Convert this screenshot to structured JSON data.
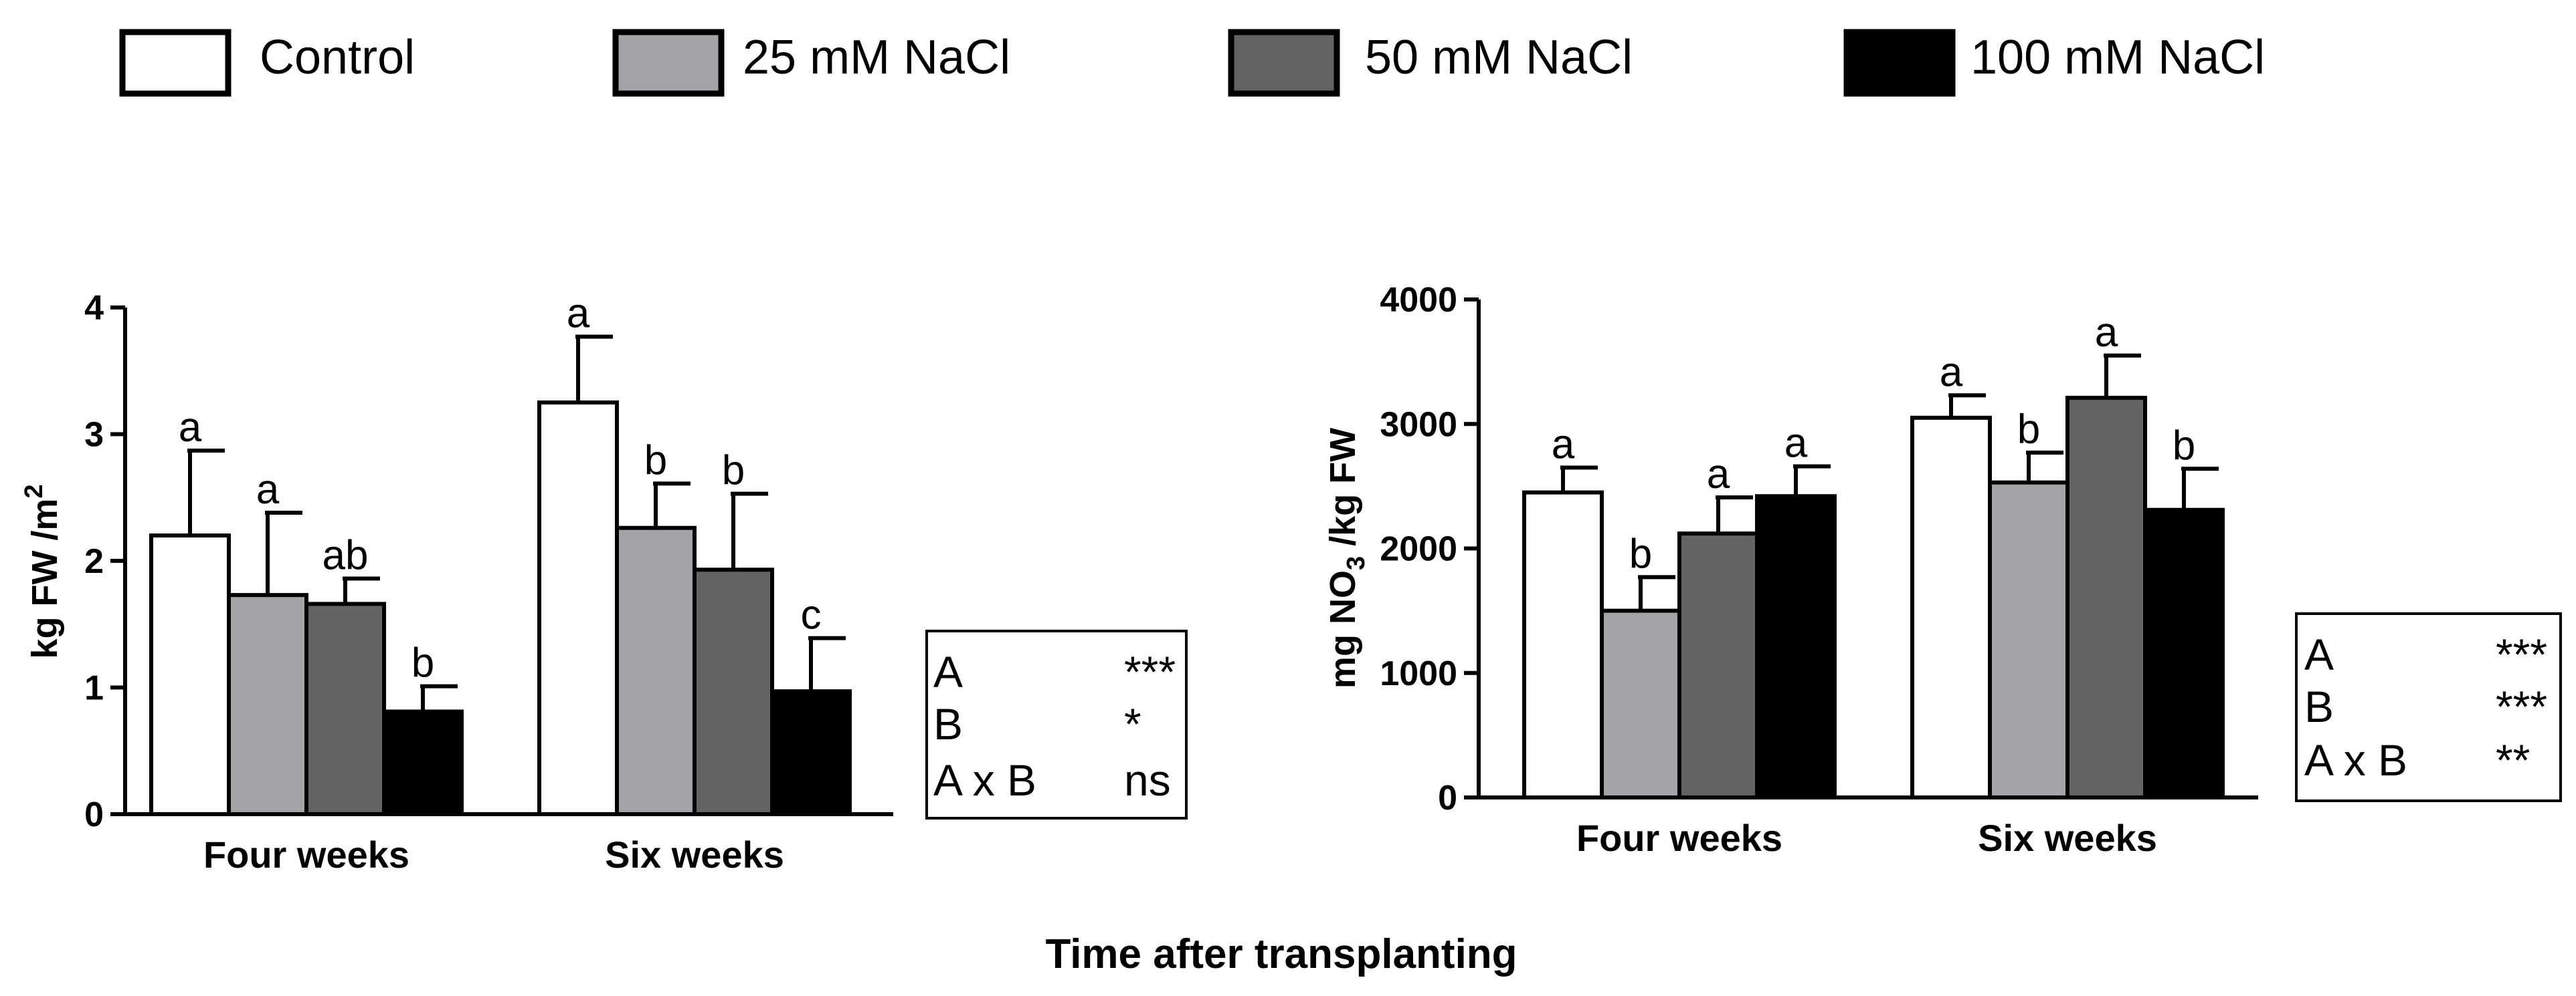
{
  "legend": [
    {
      "label": "Control",
      "color": "#ffffff"
    },
    {
      "label": "25 mM NaCl",
      "color": "#a3a3a8"
    },
    {
      "label": "50 mM NaCl",
      "color": "#636363"
    },
    {
      "label": "100 mM NaCl",
      "color": "#000000"
    }
  ],
  "x_axis_title": "Time after transplanting",
  "chart_data": [
    {
      "type": "bar",
      "title": "",
      "ylabel": "kg FW /m",
      "ylabel_sup": "2",
      "ylim": [
        0,
        4
      ],
      "yticks": [
        "0",
        "1",
        "2",
        "3",
        "4"
      ],
      "categories": [
        "Four weeks",
        "Six weeks"
      ],
      "series": [
        {
          "name": "Control",
          "values": [
            2.2,
            3.25
          ],
          "errors": [
            0.67,
            0.52
          ],
          "letters": [
            "a",
            "a"
          ]
        },
        {
          "name": "25 mM NaCl",
          "values": [
            1.73,
            2.26
          ],
          "errors": [
            0.65,
            0.35
          ],
          "letters": [
            "a",
            "b"
          ]
        },
        {
          "name": "50 mM NaCl",
          "values": [
            1.66,
            1.93
          ],
          "errors": [
            0.2,
            0.6
          ],
          "letters": [
            "ab",
            "b"
          ]
        },
        {
          "name": "100 mM NaCl",
          "values": [
            0.81,
            0.97
          ],
          "errors": [
            0.2,
            0.42
          ],
          "letters": [
            "b",
            "c"
          ]
        }
      ],
      "stats": [
        {
          "factor": "A",
          "sig": "***"
        },
        {
          "factor": "B",
          "sig": "*"
        },
        {
          "factor": "A x B",
          "sig": "ns"
        }
      ]
    },
    {
      "type": "bar",
      "title": "",
      "ylabel_parts": [
        "mg NO",
        "3",
        " /kg FW"
      ],
      "ylim": [
        0,
        4000
      ],
      "yticks": [
        "0",
        "1000",
        "2000",
        "3000",
        "4000"
      ],
      "categories": [
        "Four weeks",
        "Six weeks"
      ],
      "series": [
        {
          "name": "Control",
          "values": [
            2450,
            3050
          ],
          "errors": [
            200,
            180
          ],
          "letters": [
            "a",
            "a"
          ]
        },
        {
          "name": "25 mM NaCl",
          "values": [
            1500,
            2530
          ],
          "errors": [
            270,
            240
          ],
          "letters": [
            "b",
            "b"
          ]
        },
        {
          "name": "50 mM NaCl",
          "values": [
            2120,
            3210
          ],
          "errors": [
            290,
            340
          ],
          "letters": [
            "a",
            "a"
          ]
        },
        {
          "name": "100 mM NaCl",
          "values": [
            2420,
            2310
          ],
          "errors": [
            240,
            330
          ],
          "letters": [
            "a",
            "b"
          ]
        }
      ],
      "stats": [
        {
          "factor": "A",
          "sig": "***"
        },
        {
          "factor": "B",
          "sig": "***"
        },
        {
          "factor": "A x B",
          "sig": "**"
        }
      ]
    }
  ]
}
